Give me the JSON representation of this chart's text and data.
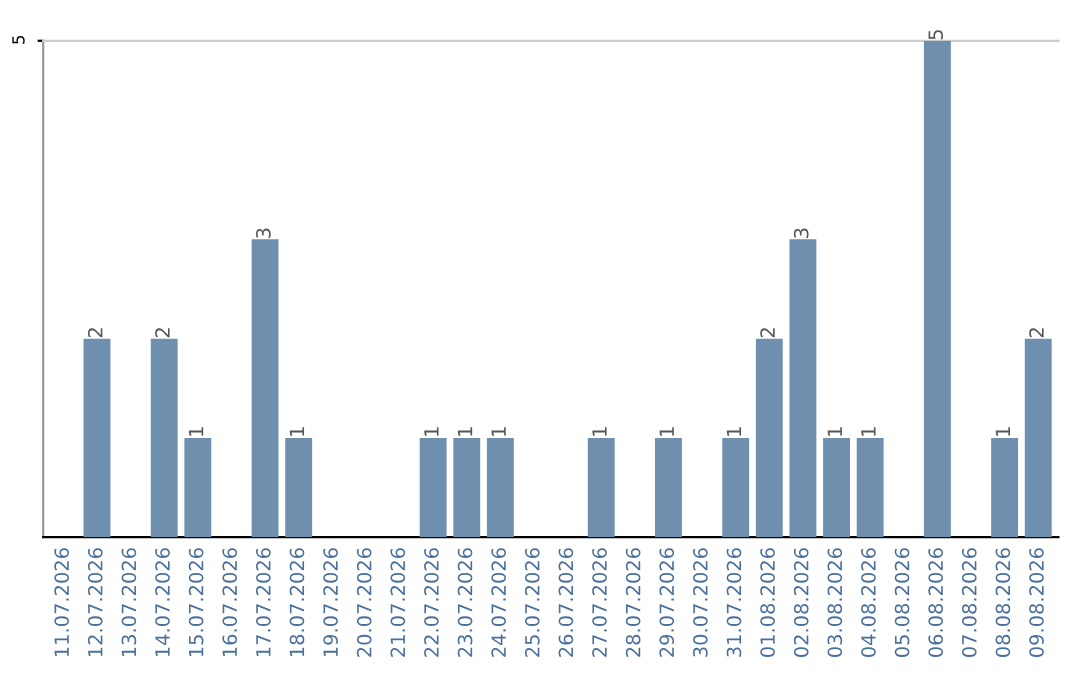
{
  "chart_data": {
    "type": "bar",
    "categories": [
      "11.07.2026",
      "12.07.2026",
      "13.07.2026",
      "14.07.2026",
      "15.07.2026",
      "16.07.2026",
      "17.07.2026",
      "18.07.2026",
      "19.07.2026",
      "20.07.2026",
      "21.07.2026",
      "22.07.2026",
      "23.07.2026",
      "24.07.2026",
      "25.07.2026",
      "26.07.2026",
      "27.07.2026",
      "28.07.2026",
      "29.07.2026",
      "30.07.2026",
      "31.07.2026",
      "01.08.2026",
      "02.08.2026",
      "03.08.2026",
      "04.08.2026",
      "05.08.2026",
      "06.08.2026",
      "07.08.2026",
      "08.08.2026",
      "09.08.2026"
    ],
    "values": [
      0,
      2,
      0,
      2,
      1,
      0,
      3,
      1,
      0,
      0,
      0,
      1,
      1,
      1,
      0,
      0,
      1,
      0,
      1,
      0,
      1,
      2,
      3,
      1,
      1,
      0,
      5,
      0,
      1,
      2
    ],
    "value_labels": [
      null,
      "2",
      null,
      "2",
      "1",
      null,
      "3",
      "1",
      null,
      null,
      null,
      "1",
      "1",
      "1",
      null,
      null,
      "1",
      null,
      "1",
      null,
      "1",
      "2",
      "3",
      "1",
      "1",
      null,
      "5",
      null,
      "1",
      "2"
    ],
    "color": "#6f8fae",
    "ylim": [
      0,
      5
    ],
    "yticks": [
      5
    ]
  }
}
